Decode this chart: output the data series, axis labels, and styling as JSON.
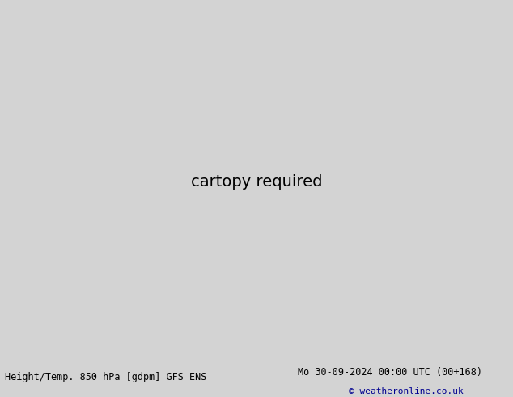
{
  "title_left": "Height/Temp. 850 hPa [gdpm] GFS ENS",
  "title_right": "Mo 30-09-2024 00:00 UTC (00+168)",
  "title_copyright": "© weatheronline.co.uk",
  "fig_width": 6.34,
  "fig_height": 4.9,
  "dpi": 100,
  "bg_color": "#d3d3d3",
  "land_color": "#c8c8c8",
  "ocean_color": "#d3d3d3",
  "height_color": "#000000",
  "temp_cyan_color": "#00cccc",
  "temp_green_color": "#80c000",
  "temp_orange_color": "#ff8c00",
  "temp_red_color": "#ff2200",
  "temp_magenta_color": "#ff00cc",
  "green_fill": "#b0e080",
  "map_lon_min": -170,
  "map_lon_max": -48,
  "map_lat_min": 13,
  "map_lat_max": 77,
  "central_lon": -100,
  "central_lat": 45
}
